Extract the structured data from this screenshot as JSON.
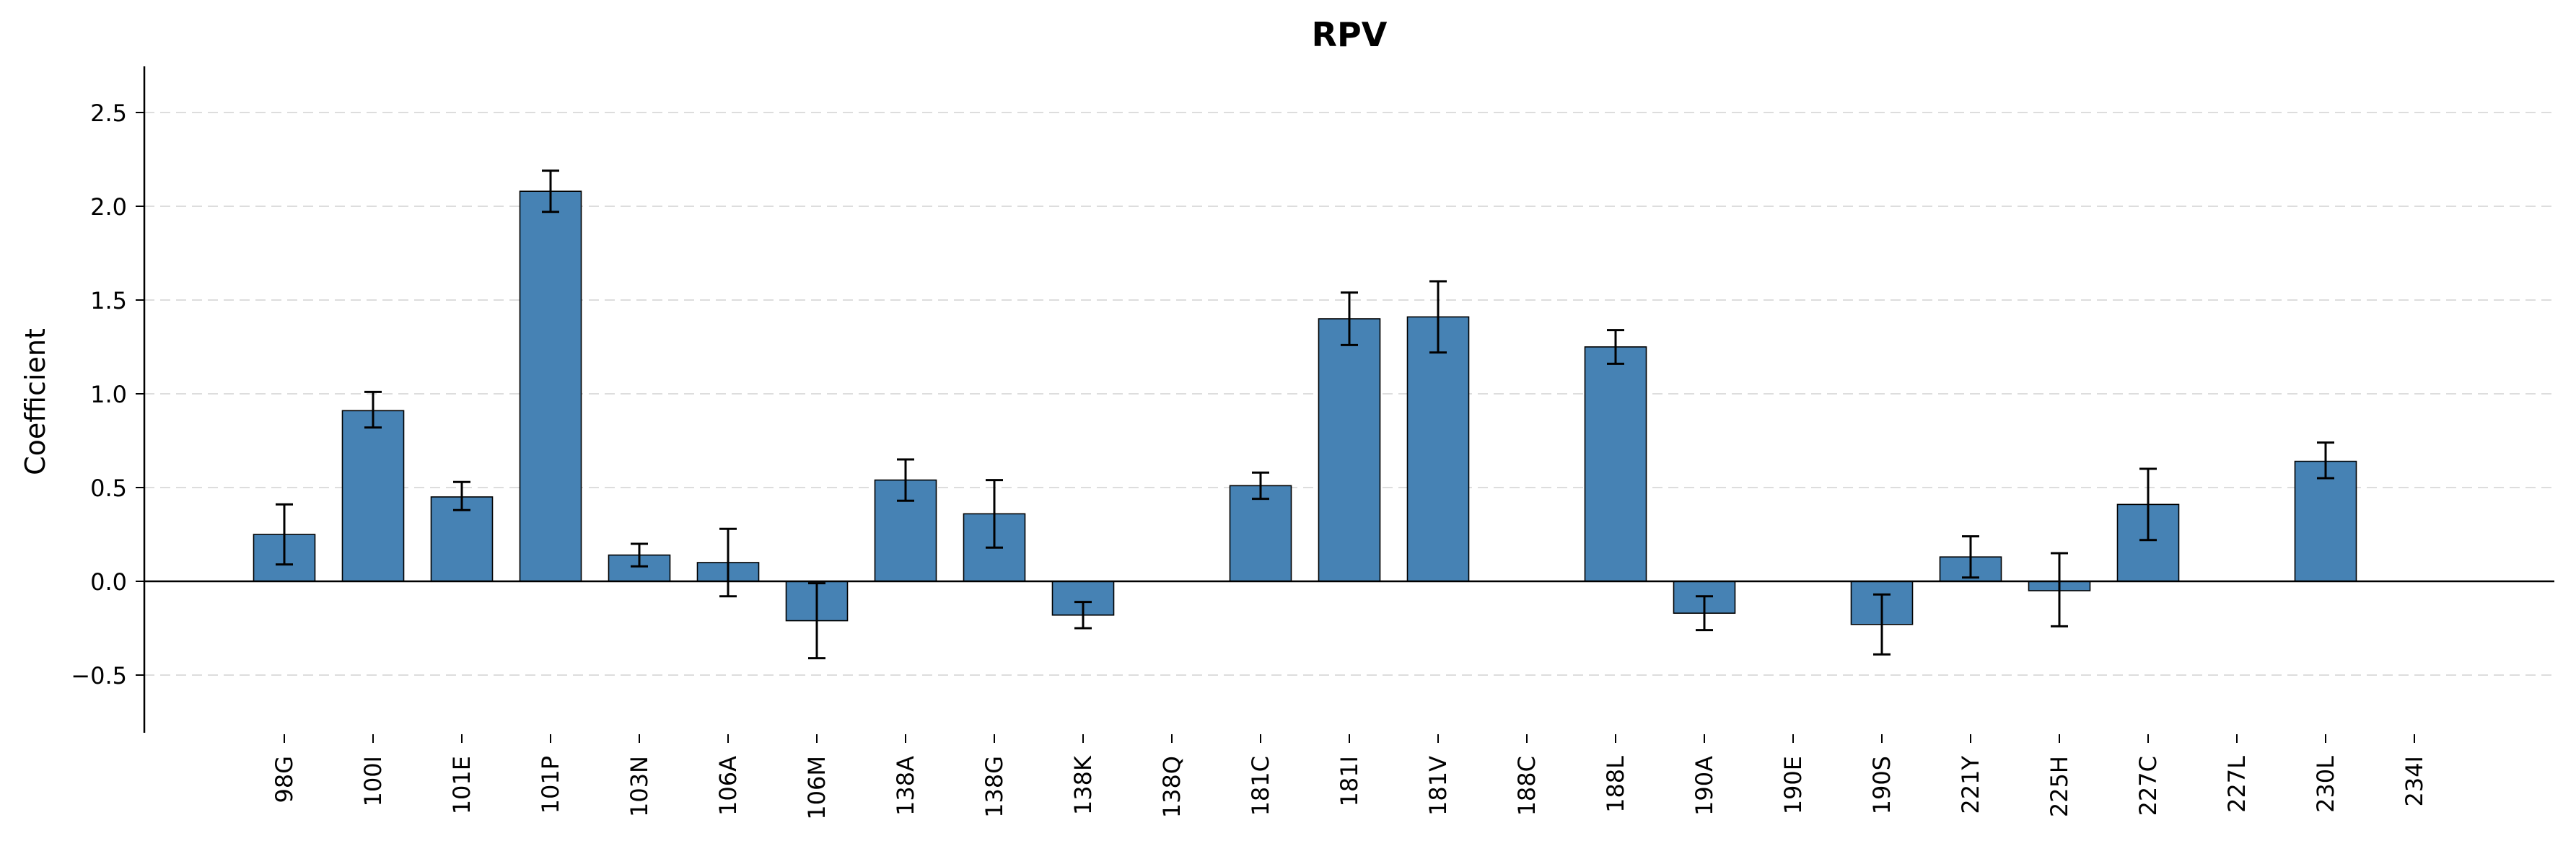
{
  "chart_data": {
    "type": "bar",
    "title": "RPV",
    "xlabel": "",
    "ylabel": "Coefficient",
    "ylim": [
      -0.8,
      2.75
    ],
    "yticks": [
      -0.5,
      0.0,
      0.5,
      1.0,
      1.5,
      2.0,
      2.5
    ],
    "ytick_labels": [
      "−0.5",
      "0.0",
      "0.5",
      "1.0",
      "1.5",
      "2.0",
      "2.5"
    ],
    "grid": "horizontal dashed",
    "bar_color": "#4682b4",
    "categories": [
      "98G",
      "100I",
      "101E",
      "101P",
      "103N",
      "106A",
      "106M",
      "138A",
      "138G",
      "138K",
      "138Q",
      "181C",
      "181I",
      "181V",
      "188C",
      "188L",
      "190A",
      "190E",
      "190S",
      "221Y",
      "225H",
      "227C",
      "227L",
      "230L",
      "234I"
    ],
    "values": [
      0.25,
      0.91,
      0.45,
      2.08,
      0.14,
      0.1,
      -0.21,
      0.54,
      0.36,
      -0.18,
      0.0,
      0.51,
      1.4,
      1.41,
      0.0,
      1.25,
      -0.17,
      0.0,
      -0.23,
      0.13,
      -0.05,
      0.41,
      0.0,
      0.64,
      0.0
    ],
    "error_low": [
      0.09,
      0.82,
      0.38,
      1.97,
      0.08,
      -0.08,
      -0.41,
      0.43,
      0.18,
      -0.25,
      0.0,
      0.44,
      1.26,
      1.22,
      0.0,
      1.16,
      -0.26,
      0.0,
      -0.39,
      0.02,
      -0.24,
      0.22,
      0.0,
      0.55,
      0.0
    ],
    "error_high": [
      0.41,
      1.01,
      0.53,
      2.19,
      0.2,
      0.28,
      -0.01,
      0.65,
      0.54,
      -0.11,
      0.0,
      0.58,
      1.54,
      1.6,
      0.0,
      1.34,
      -0.08,
      0.0,
      -0.07,
      0.24,
      0.15,
      0.6,
      0.0,
      0.74,
      0.0
    ]
  }
}
